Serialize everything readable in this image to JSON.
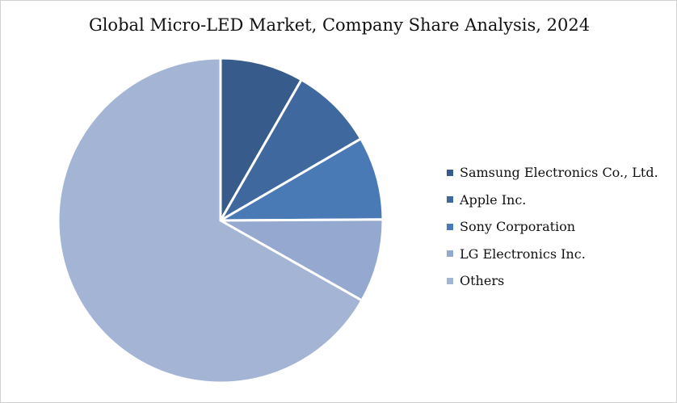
{
  "chart_data": {
    "type": "pie",
    "title": "Global Micro-LED Market, Company Share Analysis, 2024",
    "categories": [
      "Samsung Electronics Co., Ltd.",
      "Apple Inc.",
      "Sony Corporation",
      "LG Electronics Inc.",
      "Others"
    ],
    "values": [
      8.3,
      8.3,
      8.3,
      8.3,
      66.8
    ],
    "colors": [
      "#375b8a",
      "#3f699e",
      "#4a7ab5",
      "#95a8cf",
      "#a3b4d4"
    ],
    "legend_position": "right"
  }
}
